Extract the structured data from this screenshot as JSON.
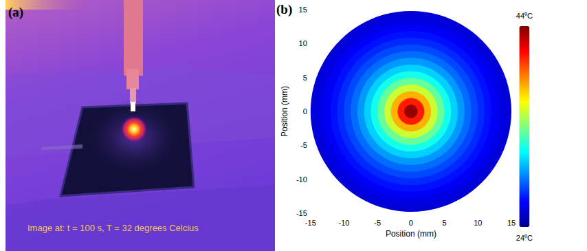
{
  "image": {
    "label": "(a)",
    "caption": "Image at: t = 100 s, T = 32 degrees Celcius"
  },
  "chart_data": {
    "type": "heatmap",
    "title": "(b)",
    "xlabel": "Position (mm)",
    "ylabel": "Position (mm)",
    "xlim": [
      -15,
      15
    ],
    "ylim": [
      -15,
      15
    ],
    "xticks": [
      -15,
      -10,
      -5,
      0,
      5,
      10,
      15
    ],
    "yticks": [
      -15,
      -10,
      -5,
      0,
      5,
      10,
      15
    ],
    "grid": false,
    "radius": [
      15,
      14,
      13,
      12,
      11,
      10,
      9,
      8,
      7,
      6,
      5,
      4,
      3,
      2,
      1
    ],
    "temperature": [
      25.6,
      25.9,
      26.3,
      26.8,
      27.3,
      27.9,
      28.6,
      29.5,
      30.6,
      31.9,
      33.5,
      35.5,
      38,
      41,
      43.5
    ],
    "colorbar": {
      "range": [
        24,
        44
      ],
      "ticks": [
        {
          "value": 24,
          "label": "24⁰C"
        },
        {
          "value": 44,
          "label": "44⁰C"
        }
      ]
    }
  }
}
